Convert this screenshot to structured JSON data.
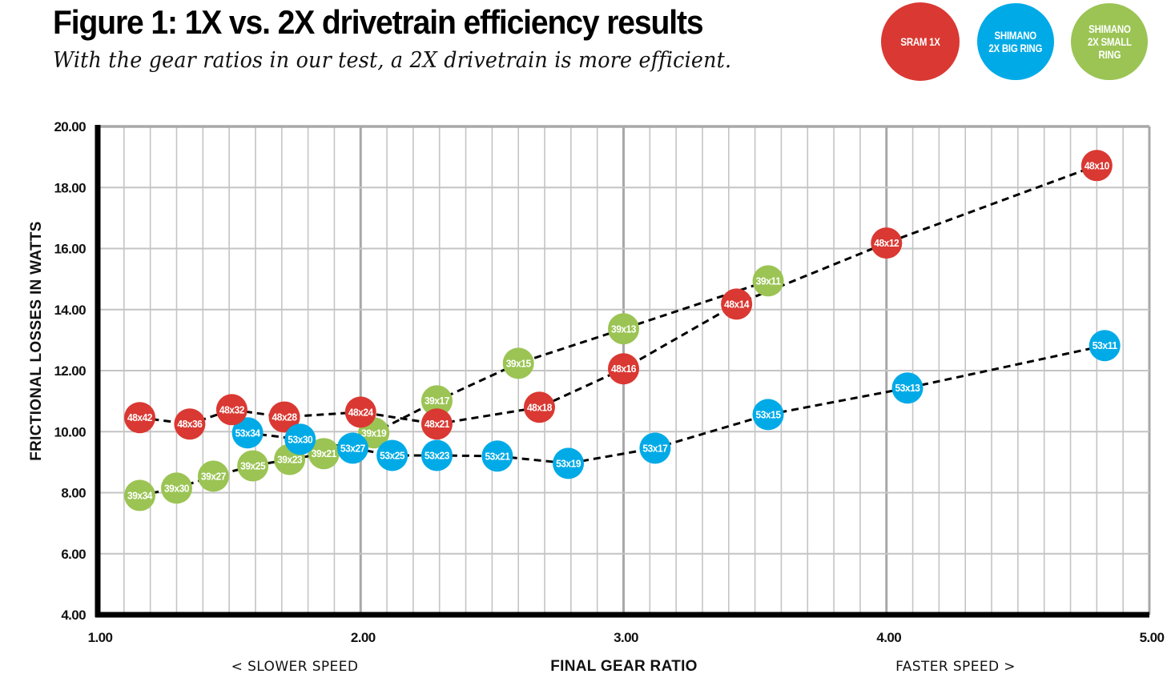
{
  "header": {
    "title": "Figure 1: 1X vs. 2X drivetrain efficiency results",
    "subtitle": "With the gear ratios in our test, a 2X drivetrain is more efficient."
  },
  "legend": [
    {
      "label": "SRAM 1X",
      "color": "#DA3832"
    },
    {
      "label": "SHIMANO\n2X BIG RING",
      "color": "#00AAE7"
    },
    {
      "label": "SHIMANO\n2X SMALL\nRING",
      "color": "#9BC454"
    }
  ],
  "chart_data": {
    "type": "scatter",
    "title": "Figure 1: 1X vs. 2X drivetrain efficiency results",
    "subtitle": "With the gear ratios in our test, a 2X drivetrain is more efficient.",
    "xlabel": "FINAL GEAR RATIO",
    "ylabel": "FRICTIONAL LOSSES IN WATTS",
    "x_left_note": "< SLOWER SPEED",
    "x_right_note": "FASTER SPEED >",
    "xlim": [
      1.0,
      5.0
    ],
    "ylim": [
      4.0,
      20.0
    ],
    "x_ticks": [
      "1.00",
      "2.00",
      "3.00",
      "4.00",
      "5.00"
    ],
    "y_ticks": [
      "4.00",
      "6.00",
      "8.00",
      "10.00",
      "12.00",
      "14.00",
      "16.00",
      "18.00",
      "20.00"
    ],
    "x_minor_step": 0.1,
    "grid": true,
    "connect_points": "dashed",
    "legend_position": "top-right",
    "series": [
      {
        "name": "SRAM 1X",
        "color": "#DA3832",
        "points": [
          {
            "label": "48x42",
            "x": 1.16,
            "y": 10.46
          },
          {
            "label": "48x36",
            "x": 1.35,
            "y": 10.25
          },
          {
            "label": "48x32",
            "x": 1.51,
            "y": 10.72
          },
          {
            "label": "48x28",
            "x": 1.71,
            "y": 10.48
          },
          {
            "label": "48x24",
            "x": 2.0,
            "y": 10.64
          },
          {
            "label": "48x21",
            "x": 2.29,
            "y": 10.25
          },
          {
            "label": "48x18",
            "x": 2.68,
            "y": 10.8
          },
          {
            "label": "48x16",
            "x": 3.0,
            "y": 12.06
          },
          {
            "label": "48x14",
            "x": 3.43,
            "y": 14.18
          },
          {
            "label": "48x12",
            "x": 4.0,
            "y": 16.18
          },
          {
            "label": "48x10",
            "x": 4.8,
            "y": 18.72
          }
        ]
      },
      {
        "name": "SHIMANO 2X BIG RING",
        "color": "#00AAE7",
        "points": [
          {
            "label": "53x34",
            "x": 1.57,
            "y": 9.96
          },
          {
            "label": "53x30",
            "x": 1.77,
            "y": 9.75
          },
          {
            "label": "53x27",
            "x": 1.97,
            "y": 9.46
          },
          {
            "label": "53x25",
            "x": 2.12,
            "y": 9.22
          },
          {
            "label": "53x23",
            "x": 2.29,
            "y": 9.22
          },
          {
            "label": "53x21",
            "x": 2.52,
            "y": 9.2
          },
          {
            "label": "53x19",
            "x": 2.79,
            "y": 8.96
          },
          {
            "label": "53x17",
            "x": 3.12,
            "y": 9.46
          },
          {
            "label": "53x15",
            "x": 3.55,
            "y": 10.56
          },
          {
            "label": "53x13",
            "x": 4.08,
            "y": 11.43
          },
          {
            "label": "53x11",
            "x": 4.83,
            "y": 12.82
          }
        ]
      },
      {
        "name": "SHIMANO 2X SMALL RING",
        "color": "#9BC454",
        "points": [
          {
            "label": "39x34",
            "x": 1.16,
            "y": 7.91
          },
          {
            "label": "39x30",
            "x": 1.3,
            "y": 8.15
          },
          {
            "label": "39x27",
            "x": 1.44,
            "y": 8.54
          },
          {
            "label": "39x25",
            "x": 1.59,
            "y": 8.88
          },
          {
            "label": "39x23",
            "x": 1.73,
            "y": 9.09
          },
          {
            "label": "39x21",
            "x": 1.86,
            "y": 9.28
          },
          {
            "label": "39x19",
            "x": 2.05,
            "y": 9.96
          },
          {
            "label": "39x17",
            "x": 2.29,
            "y": 11.01
          },
          {
            "label": "39x15",
            "x": 2.6,
            "y": 12.24
          },
          {
            "label": "39x13",
            "x": 3.0,
            "y": 13.37
          },
          {
            "label": "39x11",
            "x": 3.55,
            "y": 14.94
          }
        ]
      }
    ]
  }
}
